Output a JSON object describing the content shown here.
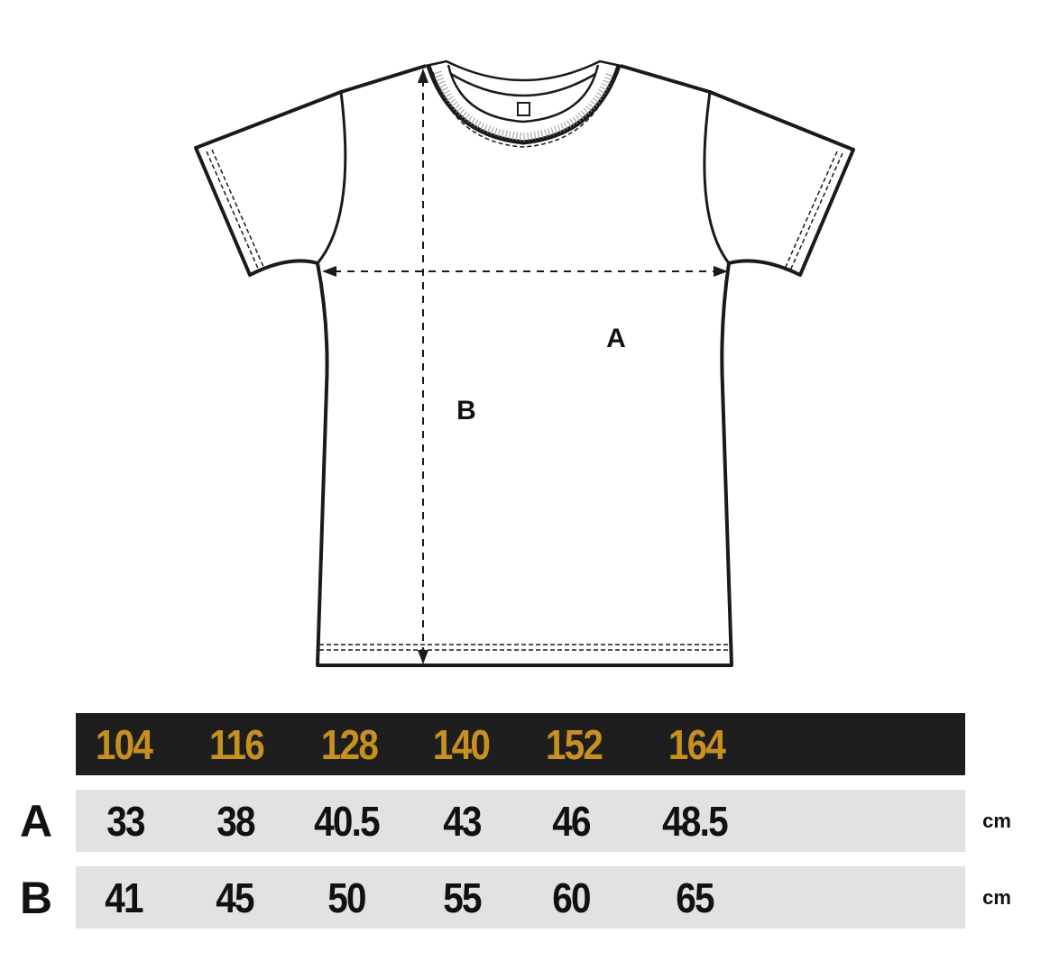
{
  "diagram": {
    "labels": {
      "width": "A",
      "length": "B"
    }
  },
  "table": {
    "sizes": [
      "104",
      "116",
      "128",
      "140",
      "152",
      "164"
    ],
    "rows": [
      {
        "label": "A",
        "values": [
          "33",
          "38",
          "40.5",
          "43",
          "46",
          "48.5"
        ],
        "unit": "cm"
      },
      {
        "label": "B",
        "values": [
          "41",
          "45",
          "50",
          "55",
          "60",
          "65"
        ],
        "unit": "cm"
      }
    ],
    "colors": {
      "header_bg": "#1e1e1e",
      "size_text": "#c8901e",
      "row_bg": "#e2e2e2"
    }
  }
}
